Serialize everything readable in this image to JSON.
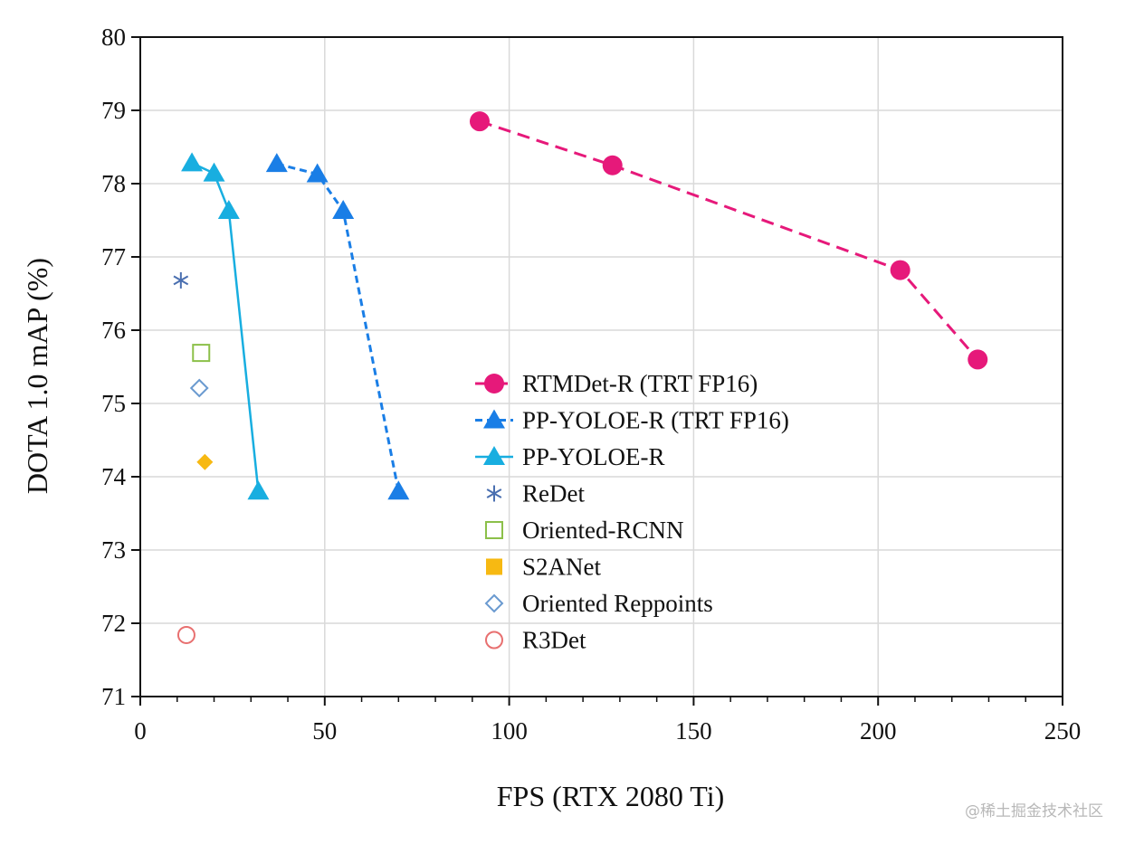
{
  "chart_data": {
    "type": "scatter",
    "xlabel": "FPS (RTX 2080 Ti)",
    "ylabel": "DOTA 1.0 mAP (%)",
    "xlim": [
      0,
      250
    ],
    "ylim": [
      71,
      80
    ],
    "xticks": [
      "0",
      "50",
      "100",
      "150",
      "200",
      "250"
    ],
    "yticks": [
      "71",
      "72",
      "73",
      "74",
      "75",
      "76",
      "77",
      "78",
      "79",
      "80"
    ],
    "grid": true,
    "legend_position": "center-right",
    "series": [
      {
        "name": "RTMDet-R (TRT FP16)",
        "marker": "circle",
        "line": "dashed",
        "color": "#e6197a",
        "points": [
          [
            92,
            78.85
          ],
          [
            128,
            78.25
          ],
          [
            206,
            76.82
          ],
          [
            227,
            75.6
          ]
        ]
      },
      {
        "name": "PP-YOLOE-R (TRT FP16)",
        "marker": "triangle",
        "line": "dashed-short",
        "color": "#1a7ee6",
        "points": [
          [
            37,
            78.27
          ],
          [
            48,
            78.13
          ],
          [
            55,
            77.63
          ],
          [
            70,
            73.8
          ]
        ]
      },
      {
        "name": "PP-YOLOE-R",
        "marker": "triangle",
        "line": "solid",
        "color": "#18aee0",
        "points": [
          [
            14,
            78.28
          ],
          [
            20,
            78.14
          ],
          [
            24,
            77.63
          ],
          [
            32,
            73.8
          ]
        ]
      },
      {
        "name": "ReDet",
        "marker": "asterisk",
        "line": "none",
        "color": "#4a6fb0",
        "points": [
          [
            11,
            76.68
          ]
        ]
      },
      {
        "name": "Oriented-RCNN",
        "marker": "square-open",
        "line": "none",
        "color": "#8cc04a",
        "points": [
          [
            16.5,
            75.69
          ]
        ]
      },
      {
        "name": "S2ANet",
        "marker": "diamond-filled",
        "legend_marker": "square-filled",
        "line": "none",
        "color": "#f7b912",
        "points": [
          [
            17.5,
            74.2
          ]
        ]
      },
      {
        "name": "Oriented Reppoints",
        "marker": "diamond-open",
        "line": "none",
        "color": "#6a9ad0",
        "points": [
          [
            16,
            75.21
          ]
        ]
      },
      {
        "name": "R3Det",
        "marker": "circle-open",
        "line": "none",
        "color": "#e87070",
        "points": [
          [
            12.5,
            71.84
          ]
        ]
      }
    ]
  },
  "watermark": "@稀土掘金技术社区"
}
